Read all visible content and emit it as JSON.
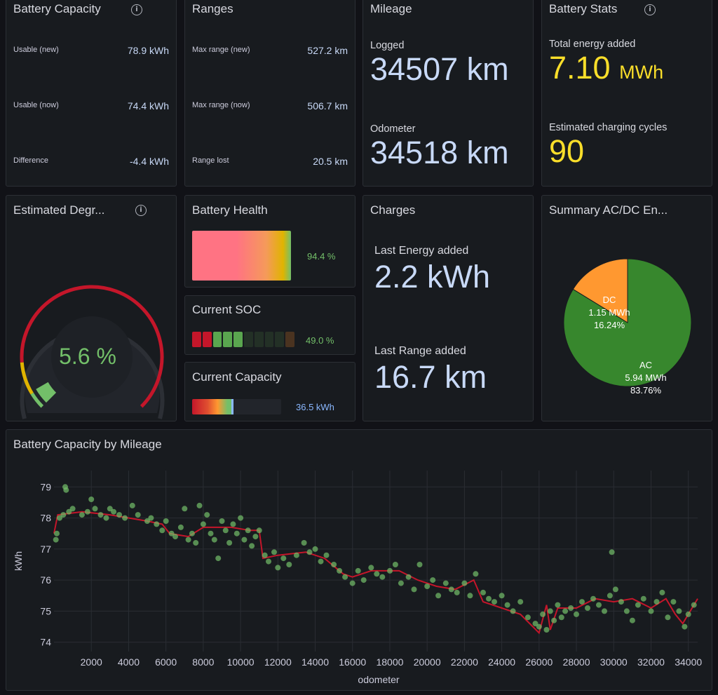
{
  "colors": {
    "blue_value": "#c8d9f7",
    "yellow": "#fade2a",
    "green": "#73bf69",
    "red": "#c4162a",
    "orange": "#ff9830",
    "dark_green": "#37872d"
  },
  "battery_capacity": {
    "title": "Battery Capacity",
    "info_icon": "info-icon",
    "rows": [
      {
        "label": "Usable (new)",
        "value": "78.9 kWh"
      },
      {
        "label": "Usable (now)",
        "value": "74.4 kWh"
      },
      {
        "label": "Difference",
        "value": "-4.4 kWh"
      }
    ]
  },
  "ranges": {
    "title": "Ranges",
    "rows": [
      {
        "label": "Max range (new)",
        "value": "527.2 km"
      },
      {
        "label": "Max range (now)",
        "value": "506.7 km"
      },
      {
        "label": "Range lost",
        "value": "20.5 km"
      }
    ]
  },
  "mileage": {
    "title": "Mileage",
    "logged_label": "Logged",
    "logged_value": "34507 km",
    "odometer_label": "Odometer",
    "odometer_value": "34518 km"
  },
  "battery_stats": {
    "title": "Battery Stats",
    "info_icon": "info-icon",
    "energy_label": "Total energy added",
    "energy_value": "7.10",
    "energy_unit": "MWh",
    "cycles_label": "Estimated charging cycles",
    "cycles_value": "90"
  },
  "degradation": {
    "title": "Estimated Degr...",
    "info_icon": "info-icon",
    "value_text": "5.6 %",
    "value": 5.6,
    "max": 100
  },
  "battery_health": {
    "title": "Battery Health",
    "value_text": "94.4 %",
    "value": 94.4
  },
  "current_soc": {
    "title": "Current SOC",
    "value_text": "49.0 %",
    "value": 49.0
  },
  "current_capacity": {
    "title": "Current Capacity",
    "value_text": "36.5 kWh",
    "value": 36.5,
    "max": 78.9
  },
  "charges": {
    "title": "Charges",
    "energy_label": "Last Energy added",
    "energy_value": "2.2 kWh",
    "range_label": "Last Range added",
    "range_value": "16.7 km"
  },
  "summary_acdc": {
    "title": "Summary AC/DC En...",
    "slices": [
      {
        "name": "AC",
        "value_text": "5.94 MWh",
        "percent_text": "83.76%",
        "percent": 83.76,
        "color": "#37872d"
      },
      {
        "name": "DC",
        "value_text": "1.15 MWh",
        "percent_text": "16.24%",
        "percent": 16.24,
        "color": "#ff9830"
      }
    ]
  },
  "chart_data": {
    "type": "scatter",
    "title": "Battery Capacity by Mileage",
    "xlabel": "odometer",
    "ylabel": "kWh",
    "xlim": [
      0,
      34500
    ],
    "ylim": [
      73.7,
      79.3
    ],
    "xticks": [
      2000,
      4000,
      6000,
      8000,
      10000,
      12000,
      14000,
      16000,
      18000,
      20000,
      22000,
      24000,
      26000,
      28000,
      30000,
      32000,
      34000
    ],
    "yticks": [
      74,
      75,
      76,
      77,
      78,
      79
    ],
    "series": [
      {
        "type": "line",
        "color": "#c4162a",
        "points": [
          [
            0,
            77.5
          ],
          [
            200,
            78.1
          ],
          [
            1500,
            78.2
          ],
          [
            3000,
            78.1
          ],
          [
            5000,
            77.9
          ],
          [
            5800,
            77.8
          ],
          [
            6200,
            77.5
          ],
          [
            7200,
            77.4
          ],
          [
            8000,
            77.7
          ],
          [
            9500,
            77.7
          ],
          [
            10500,
            77.6
          ],
          [
            11000,
            77.6
          ],
          [
            11200,
            76.7
          ],
          [
            12000,
            76.8
          ],
          [
            13500,
            76.9
          ],
          [
            14500,
            76.7
          ],
          [
            15500,
            76.2
          ],
          [
            16000,
            76.1
          ],
          [
            17000,
            76.3
          ],
          [
            18500,
            76.3
          ],
          [
            19500,
            76.0
          ],
          [
            20500,
            75.8
          ],
          [
            21500,
            75.7
          ],
          [
            22500,
            76.0
          ],
          [
            23000,
            75.3
          ],
          [
            24000,
            75.1
          ],
          [
            25000,
            74.9
          ],
          [
            26000,
            74.3
          ],
          [
            26400,
            75.2
          ],
          [
            26600,
            74.4
          ],
          [
            27000,
            75.1
          ],
          [
            28000,
            75.1
          ],
          [
            29000,
            75.4
          ],
          [
            30000,
            75.3
          ],
          [
            31000,
            75.4
          ],
          [
            32000,
            75.1
          ],
          [
            32800,
            75.4
          ],
          [
            33300,
            74.9
          ],
          [
            33700,
            74.6
          ],
          [
            34500,
            75.4
          ]
        ]
      },
      {
        "type": "scatter",
        "color": "#73bf69",
        "points": [
          [
            100,
            77.3
          ],
          [
            150,
            77.5
          ],
          [
            300,
            78.0
          ],
          [
            500,
            78.1
          ],
          [
            600,
            79.0
          ],
          [
            650,
            78.9
          ],
          [
            800,
            78.2
          ],
          [
            1000,
            78.3
          ],
          [
            1500,
            78.1
          ],
          [
            1800,
            78.2
          ],
          [
            2000,
            78.6
          ],
          [
            2200,
            78.3
          ],
          [
            2500,
            78.1
          ],
          [
            2800,
            78.0
          ],
          [
            3000,
            78.3
          ],
          [
            3200,
            78.2
          ],
          [
            3500,
            78.1
          ],
          [
            3800,
            78.0
          ],
          [
            4200,
            78.4
          ],
          [
            4500,
            78.1
          ],
          [
            5000,
            77.9
          ],
          [
            5200,
            78.0
          ],
          [
            5500,
            77.8
          ],
          [
            5800,
            77.6
          ],
          [
            6000,
            77.9
          ],
          [
            6300,
            77.5
          ],
          [
            6500,
            77.4
          ],
          [
            6800,
            77.7
          ],
          [
            7000,
            78.3
          ],
          [
            7200,
            77.3
          ],
          [
            7400,
            77.5
          ],
          [
            7600,
            77.2
          ],
          [
            7800,
            78.4
          ],
          [
            8000,
            77.8
          ],
          [
            8200,
            78.1
          ],
          [
            8400,
            77.5
          ],
          [
            8600,
            77.3
          ],
          [
            8800,
            76.7
          ],
          [
            9000,
            77.9
          ],
          [
            9200,
            77.6
          ],
          [
            9400,
            77.2
          ],
          [
            9600,
            77.8
          ],
          [
            9800,
            77.5
          ],
          [
            10000,
            78.0
          ],
          [
            10200,
            77.3
          ],
          [
            10400,
            77.6
          ],
          [
            10600,
            77.1
          ],
          [
            10800,
            77.4
          ],
          [
            11000,
            77.6
          ],
          [
            11300,
            76.8
          ],
          [
            11500,
            76.6
          ],
          [
            11800,
            76.9
          ],
          [
            12000,
            76.4
          ],
          [
            12300,
            76.7
          ],
          [
            12600,
            76.5
          ],
          [
            13000,
            76.8
          ],
          [
            13400,
            77.2
          ],
          [
            13700,
            76.9
          ],
          [
            14000,
            77.0
          ],
          [
            14300,
            76.6
          ],
          [
            14600,
            76.8
          ],
          [
            15000,
            76.5
          ],
          [
            15300,
            76.3
          ],
          [
            15600,
            76.1
          ],
          [
            16000,
            75.9
          ],
          [
            16300,
            76.3
          ],
          [
            16600,
            76.0
          ],
          [
            17000,
            76.4
          ],
          [
            17300,
            76.2
          ],
          [
            17600,
            76.1
          ],
          [
            18000,
            76.3
          ],
          [
            18300,
            76.5
          ],
          [
            18600,
            75.9
          ],
          [
            19000,
            76.1
          ],
          [
            19300,
            75.7
          ],
          [
            19600,
            76.5
          ],
          [
            20000,
            75.8
          ],
          [
            20300,
            76.0
          ],
          [
            20600,
            75.5
          ],
          [
            21000,
            75.9
          ],
          [
            21300,
            75.7
          ],
          [
            21600,
            75.6
          ],
          [
            22000,
            75.9
          ],
          [
            22300,
            75.5
          ],
          [
            22600,
            76.2
          ],
          [
            23000,
            75.6
          ],
          [
            23300,
            75.4
          ],
          [
            23600,
            75.3
          ],
          [
            24000,
            75.5
          ],
          [
            24300,
            75.2
          ],
          [
            24600,
            75.0
          ],
          [
            25000,
            75.3
          ],
          [
            25400,
            74.8
          ],
          [
            25800,
            74.6
          ],
          [
            26000,
            74.5
          ],
          [
            26200,
            74.9
          ],
          [
            26400,
            74.4
          ],
          [
            26600,
            75.0
          ],
          [
            26800,
            74.7
          ],
          [
            27000,
            75.2
          ],
          [
            27200,
            74.8
          ],
          [
            27400,
            75.0
          ],
          [
            27700,
            75.1
          ],
          [
            28000,
            74.9
          ],
          [
            28300,
            75.3
          ],
          [
            28600,
            75.1
          ],
          [
            28900,
            75.4
          ],
          [
            29200,
            75.2
          ],
          [
            29500,
            75.0
          ],
          [
            29800,
            75.5
          ],
          [
            29900,
            76.9
          ],
          [
            30100,
            75.7
          ],
          [
            30400,
            75.3
          ],
          [
            30700,
            75.0
          ],
          [
            31000,
            74.7
          ],
          [
            31300,
            75.2
          ],
          [
            31600,
            75.4
          ],
          [
            32000,
            75.0
          ],
          [
            32300,
            75.3
          ],
          [
            32600,
            75.6
          ],
          [
            32900,
            74.8
          ],
          [
            33200,
            75.3
          ],
          [
            33500,
            75.0
          ],
          [
            33800,
            74.5
          ],
          [
            34000,
            74.9
          ],
          [
            34300,
            75.2
          ]
        ]
      }
    ],
    "grid": true
  }
}
